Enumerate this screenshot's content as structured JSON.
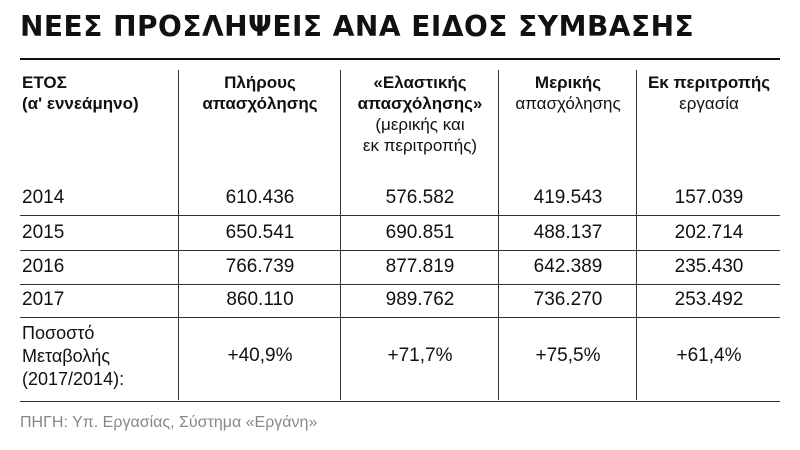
{
  "title": "ΝΕΕΣ ΠΡΟΣΛΗΨΕΙΣ ΑΝΑ ΕΙΔΟΣ ΣΥΜΒΑΣΗΣ",
  "headers": {
    "year": {
      "line1": "ΕΤΟΣ",
      "line2": "(α' εννεάμηνο)"
    },
    "full": {
      "line1": "Πλήρους",
      "line2": "απασχόλησης"
    },
    "flexible": {
      "line1": "«Ελαστικής",
      "line2": "απασχόλησης»",
      "line3": "(μερικής και",
      "line4": "εκ περιτροπής)"
    },
    "partial": {
      "line1": "Μερικής",
      "line2": "απασχόλησης"
    },
    "rotation": {
      "line1": "Εκ περιτροπής",
      "line2": "εργασία"
    }
  },
  "rows": [
    {
      "year": "2014",
      "full": "610.436",
      "flexible": "576.582",
      "partial": "419.543",
      "rotation": "157.039"
    },
    {
      "year": "2015",
      "full": "650.541",
      "flexible": "690.851",
      "partial": "488.137",
      "rotation": "202.714"
    },
    {
      "year": "2016",
      "full": "766.739",
      "flexible": "877.819",
      "partial": "642.389",
      "rotation": "235.430"
    },
    {
      "year": "2017",
      "full": "860.110",
      "flexible": "989.762",
      "partial": "736.270",
      "rotation": "253.492"
    }
  ],
  "change": {
    "label1": "Ποσοστό",
    "label2": "Μεταβολής",
    "label3": "(2017/2014):",
    "full": "+40,9%",
    "flexible": "+71,7%",
    "partial": "+75,5%",
    "rotation": "+61,4%"
  },
  "source": "ΠΗΓΗ: Υπ. Εργασίας, Σύστημα «Εργάνη»"
}
